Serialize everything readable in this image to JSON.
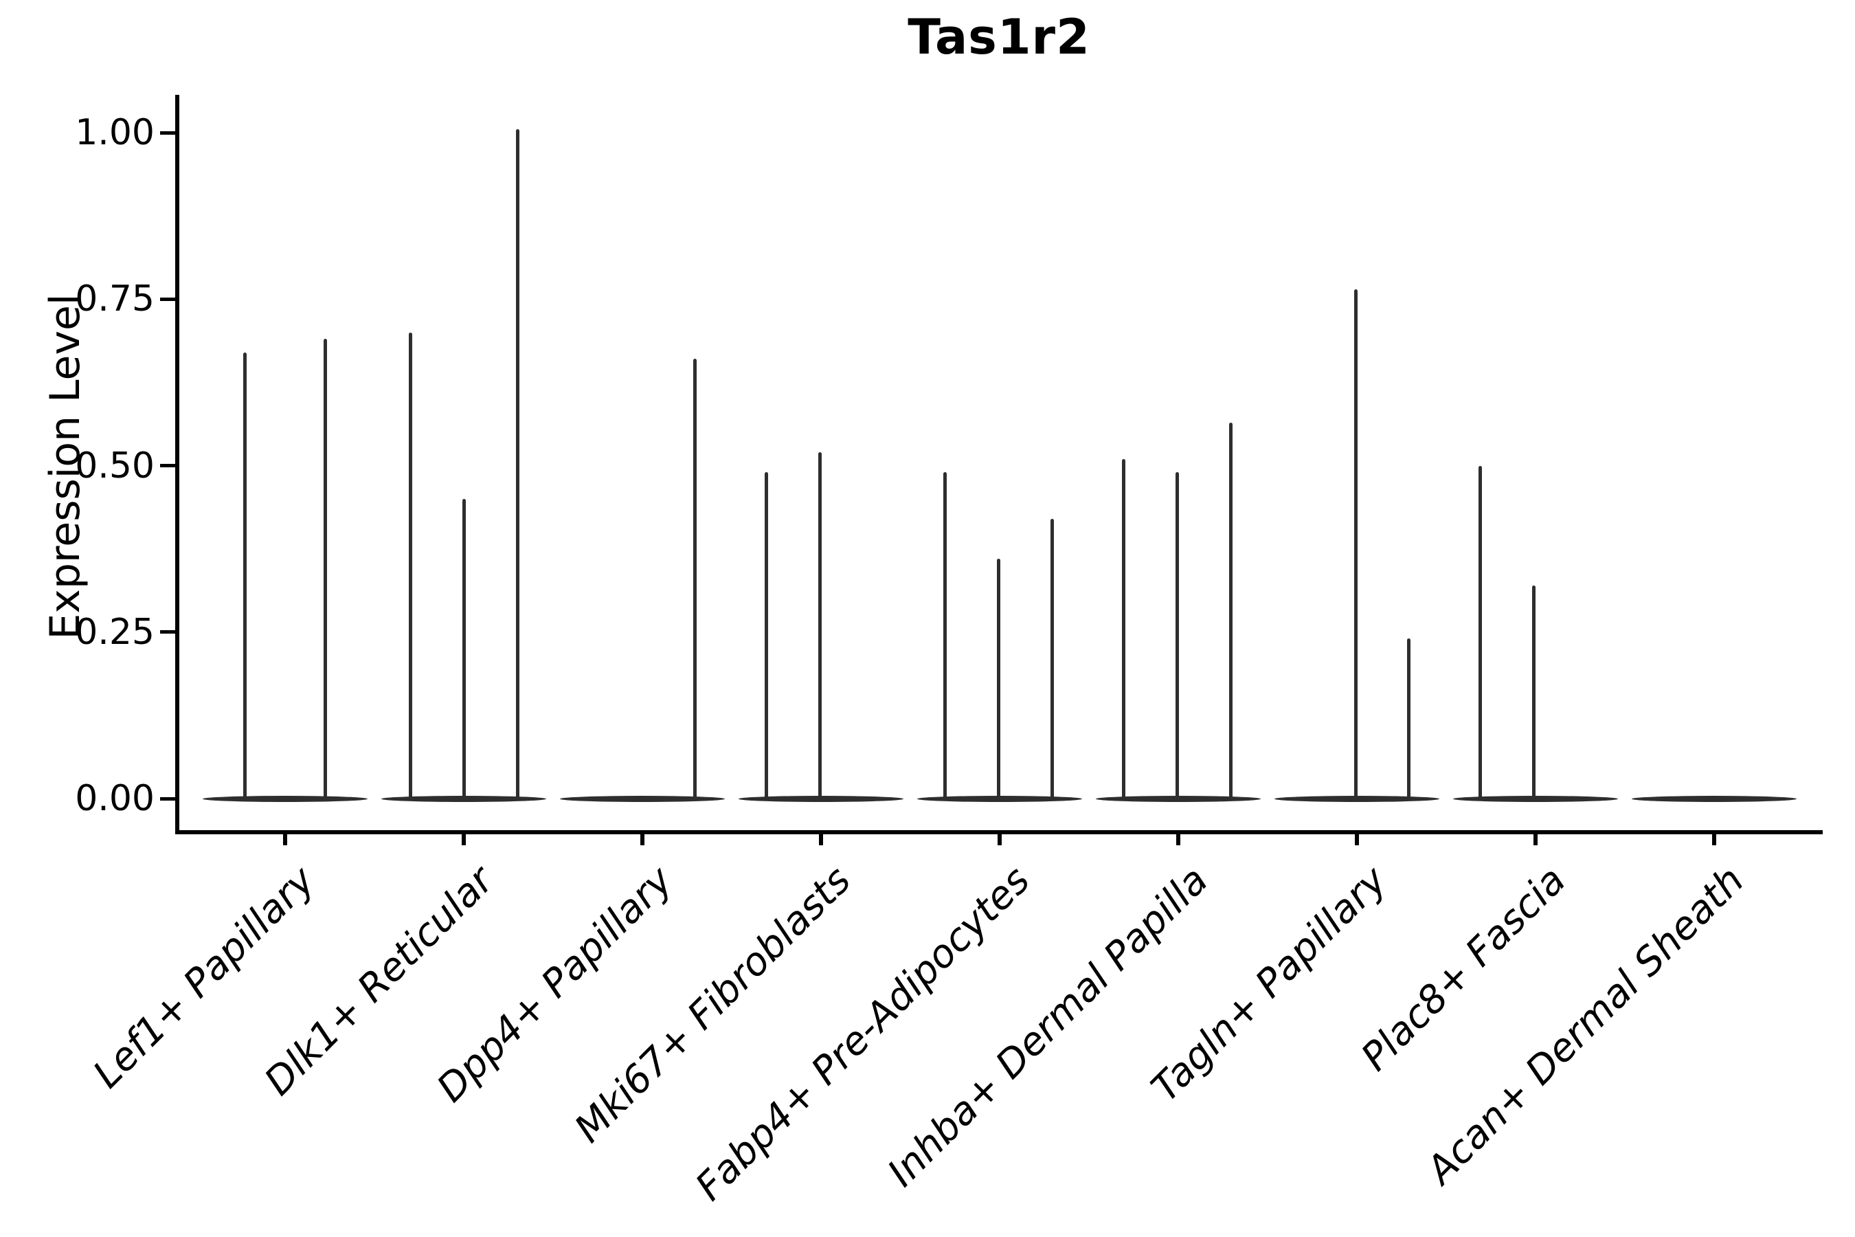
{
  "title": "Tas1r2",
  "colors": {
    "ink": "#2e2e2e",
    "axis": "#000000",
    "background": "#ffffff"
  },
  "chart_data": {
    "type": "violin",
    "title": "Tas1r2",
    "ylabel": "Expression Level",
    "xlabel": "",
    "ylim": [
      0,
      1.05
    ],
    "grid": false,
    "legend": "none",
    "yticks": [
      {
        "value": 0.0,
        "label": "0.00"
      },
      {
        "value": 0.25,
        "label": "0.25"
      },
      {
        "value": 0.5,
        "label": "0.50"
      },
      {
        "value": 0.75,
        "label": "0.75"
      },
      {
        "value": 1.0,
        "label": "1.00"
      }
    ],
    "categories": [
      "Lef1+ Papillary",
      "Dlk1+ Reticular",
      "Dpp4+ Papillary",
      "Mki67+ Fibroblasts",
      "Fabp4+ Pre-Adipocytes",
      "Inhba+ Dermal Papilla",
      "Tagln+ Papillary",
      "Plac8+ Fascia",
      "Acan+ Dermal Sheath"
    ],
    "violins": [
      {
        "category": "Lef1+ Papillary",
        "baseline_value": 0,
        "spikes": [
          {
            "x_offset": -59,
            "value": 0.67
          },
          {
            "x_offset": 58,
            "value": 0.69
          }
        ]
      },
      {
        "category": "Dlk1+ Reticular",
        "baseline_value": 0,
        "spikes": [
          {
            "x_offset": -78,
            "value": 0.7
          },
          {
            "x_offset": 0,
            "value": 0.45
          },
          {
            "x_offset": 78,
            "value": 1.005
          }
        ]
      },
      {
        "category": "Dpp4+ Papillary",
        "baseline_value": 0,
        "spikes": [
          {
            "x_offset": 76,
            "value": 0.66
          }
        ]
      },
      {
        "category": "Mki67+ Fibroblasts",
        "baseline_value": 0,
        "spikes": [
          {
            "x_offset": -80,
            "value": 0.49
          },
          {
            "x_offset": -2,
            "value": 0.52
          }
        ]
      },
      {
        "category": "Fabp4+ Pre-Adipocytes",
        "baseline_value": 0,
        "spikes": [
          {
            "x_offset": -80,
            "value": 0.49
          },
          {
            "x_offset": -2,
            "value": 0.36
          },
          {
            "x_offset": 76,
            "value": 0.42
          }
        ]
      },
      {
        "category": "Inhba+ Dermal Papilla",
        "baseline_value": 0,
        "spikes": [
          {
            "x_offset": -80,
            "value": 0.51
          },
          {
            "x_offset": -2,
            "value": 0.49
          },
          {
            "x_offset": 76,
            "value": 0.565
          }
        ]
      },
      {
        "category": "Tagln+ Papillary",
        "baseline_value": 0,
        "spikes": [
          {
            "x_offset": -2,
            "value": 0.765
          },
          {
            "x_offset": 75,
            "value": 0.24
          }
        ]
      },
      {
        "category": "Plac8+ Fascia",
        "baseline_value": 0,
        "spikes": [
          {
            "x_offset": -81,
            "value": 0.5
          },
          {
            "x_offset": -3,
            "value": 0.32
          }
        ]
      },
      {
        "category": "Acan+ Dermal Sheath",
        "baseline_value": 0,
        "spikes": []
      }
    ]
  }
}
